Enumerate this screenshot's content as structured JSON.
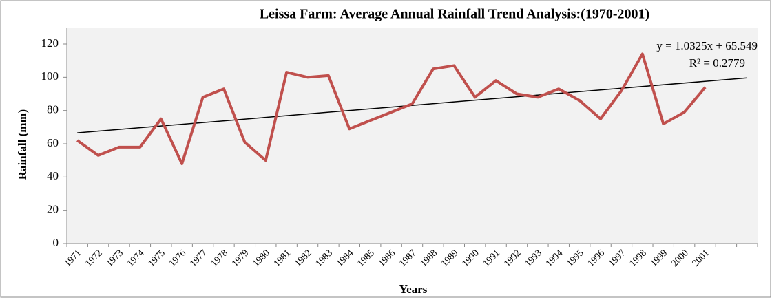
{
  "chart_data": {
    "type": "line",
    "title": "Leissa Farm:  Average Annual  Rainfall Trend Analysis:(1970-2001)",
    "x_label": "Years",
    "y_label": "Rainfall (mm)",
    "categories": [
      "1971",
      "1972",
      "1973",
      "1974",
      "1975",
      "1976",
      "1977",
      "1978",
      "1979",
      "1980",
      "1981",
      "1982",
      "1983",
      "1984",
      "1985",
      "1986",
      "1987",
      "1988",
      "1989",
      "1990",
      "1991",
      "1992",
      "1993",
      "1994",
      "1995",
      "1996",
      "1997",
      "1998",
      "1999",
      "2000",
      "2001",
      null,
      null
    ],
    "series": [
      {
        "name": "Rainfall",
        "color": "#c0504d",
        "values": [
          62,
          53,
          58,
          58,
          75,
          48,
          88,
          93,
          61,
          50,
          103,
          100,
          101,
          69,
          74,
          79,
          84,
          105,
          107,
          88,
          98,
          90,
          88,
          93,
          86,
          75,
          92,
          114,
          72,
          79,
          94,
          null,
          null
        ]
      }
    ],
    "trendline": {
      "slope": 1.0325,
      "intercept": 65.549,
      "color": "#000000"
    },
    "annotations": [
      "y = 1.0325x  + 65.549",
      "R² = 0.2779"
    ],
    "ylim": [
      0,
      120
    ],
    "yticks": [
      0,
      20,
      40,
      60,
      80,
      100,
      120
    ],
    "grid": false
  }
}
